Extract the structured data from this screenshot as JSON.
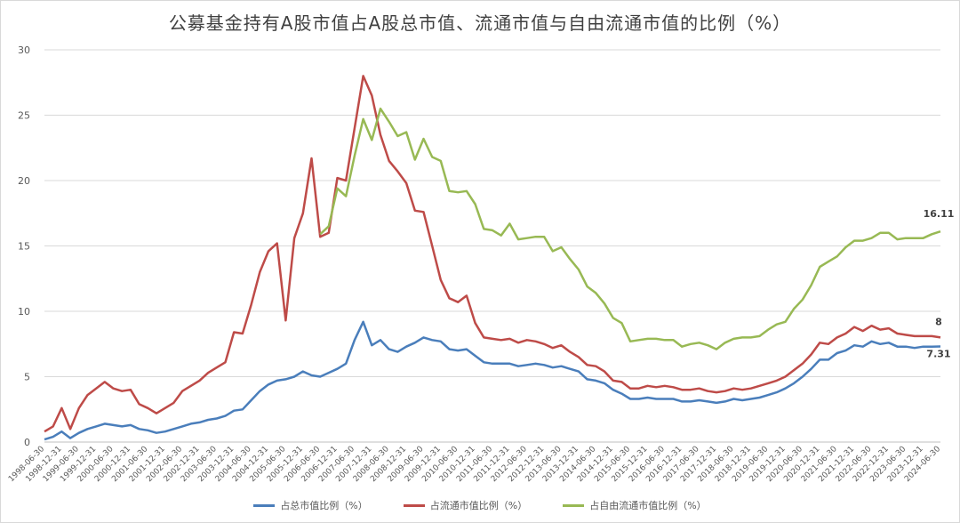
{
  "chart_data": {
    "type": "line",
    "title": "公募基金持有A股市值占A股总市值、流通市值与自由流通市值的比例（%）",
    "ylim": [
      0,
      30
    ],
    "yticks": [
      0,
      5,
      10,
      15,
      20,
      25,
      30
    ],
    "grid": true,
    "legend_position": "bottom",
    "x_tick_labels": [
      "1998-06-30",
      "1998-12-31",
      "1999-06-30",
      "1999-12-31",
      "2000-06-30",
      "2000-12-31",
      "2001-06-30",
      "2001-12-31",
      "2002-06-30",
      "2002-12-31",
      "2003-06-30",
      "2003-12-31",
      "2004-06-30",
      "2004-12-31",
      "2005-06-30",
      "2005-12-31",
      "2006-06-30",
      "2006-12-31",
      "2007-06-30",
      "2007-12-31",
      "2008-06-30",
      "2008-12-31",
      "2009-06-30",
      "2009-12-31",
      "2010-06-30",
      "2010-12-31",
      "2011-06-30",
      "2011-12-31",
      "2012-06-30",
      "2012-12-31",
      "2013-06-30",
      "2013-12-31",
      "2014-06-30",
      "2014-12-31",
      "2015-06-30",
      "2015-12-31",
      "2016-06-30",
      "2016-12-31",
      "2017-06-30",
      "2017-12-31",
      "2018-06-30",
      "2018-12-31",
      "2019-06-30",
      "2019-12-31",
      "2020-06-30",
      "2020-12-31",
      "2021-06-30",
      "2021-12-31",
      "2022-06-30",
      "2022-12-31",
      "2023-06-30",
      "2023-12-31",
      "2024-06-30"
    ],
    "quarters_per_tick": 2,
    "series": [
      {
        "name": "占总市值比例（%）",
        "color": "#4a7ebb",
        "values": [
          0.2,
          0.4,
          0.8,
          0.3,
          0.7,
          1.0,
          1.2,
          1.4,
          1.3,
          1.2,
          1.3,
          1.0,
          0.9,
          0.7,
          0.8,
          1.0,
          1.2,
          1.4,
          1.5,
          1.7,
          1.8,
          2.0,
          2.4,
          2.5,
          3.2,
          3.9,
          4.4,
          4.7,
          4.8,
          5.0,
          5.4,
          5.1,
          5.0,
          5.3,
          5.6,
          6.0,
          7.8,
          9.2,
          7.4,
          7.8,
          7.1,
          6.9,
          7.3,
          7.6,
          8.0,
          7.8,
          7.7,
          7.1,
          7.0,
          7.1,
          6.6,
          6.1,
          6.0,
          6.0,
          6.0,
          5.8,
          5.9,
          6.0,
          5.9,
          5.7,
          5.8,
          5.6,
          5.4,
          4.8,
          4.7,
          4.5,
          4.0,
          3.7,
          3.3,
          3.3,
          3.4,
          3.3,
          3.3,
          3.3,
          3.1,
          3.1,
          3.2,
          3.1,
          3.0,
          3.1,
          3.3,
          3.2,
          3.3,
          3.4,
          3.6,
          3.8,
          4.1,
          4.5,
          5.0,
          5.6,
          6.3,
          6.3,
          6.8,
          7.0,
          7.4,
          7.3,
          7.7,
          7.5,
          7.6,
          7.3,
          7.3,
          7.2,
          7.3,
          7.3,
          7.31
        ],
        "end_label": "7.31"
      },
      {
        "name": "占流通市值比例（%）",
        "color": "#be4b48",
        "values": [
          0.8,
          1.2,
          2.6,
          1.0,
          2.6,
          3.6,
          4.1,
          4.6,
          4.1,
          3.9,
          4.0,
          2.9,
          2.6,
          2.2,
          2.6,
          3.0,
          3.9,
          4.3,
          4.7,
          5.3,
          5.7,
          6.1,
          8.4,
          8.3,
          10.5,
          13.0,
          14.6,
          15.2,
          9.3,
          15.6,
          17.5,
          21.7,
          15.7,
          16.0,
          20.2,
          20.0,
          24.0,
          28.0,
          26.5,
          23.5,
          21.5,
          20.7,
          19.8,
          17.7,
          17.6,
          15.0,
          12.4,
          11.0,
          10.7,
          11.2,
          9.1,
          8.0,
          7.9,
          7.8,
          7.9,
          7.6,
          7.8,
          7.7,
          7.5,
          7.2,
          7.4,
          6.9,
          6.5,
          5.9,
          5.8,
          5.4,
          4.7,
          4.6,
          4.1,
          4.1,
          4.3,
          4.2,
          4.3,
          4.2,
          4.0,
          4.0,
          4.1,
          3.9,
          3.8,
          3.9,
          4.1,
          4.0,
          4.1,
          4.3,
          4.5,
          4.7,
          5.0,
          5.5,
          6.0,
          6.7,
          7.6,
          7.5,
          8.0,
          8.3,
          8.8,
          8.5,
          8.9,
          8.6,
          8.7,
          8.3,
          8.2,
          8.1,
          8.1,
          8.1,
          8.0
        ],
        "end_label": "8"
      },
      {
        "name": "占自由流通市值比例（%）",
        "color": "#98b954",
        "start_index": 32,
        "values": [
          15.9,
          16.5,
          19.4,
          18.8,
          21.9,
          24.7,
          23.1,
          25.5,
          24.5,
          23.4,
          23.7,
          21.6,
          23.2,
          21.8,
          21.5,
          19.2,
          19.1,
          19.2,
          18.2,
          16.3,
          16.2,
          15.8,
          16.7,
          15.5,
          15.6,
          15.7,
          15.7,
          14.6,
          14.9,
          14.0,
          13.2,
          11.9,
          11.4,
          10.6,
          9.5,
          9.1,
          7.7,
          7.8,
          7.9,
          7.9,
          7.8,
          7.8,
          7.3,
          7.5,
          7.6,
          7.4,
          7.1,
          7.6,
          7.9,
          8.0,
          8.0,
          8.1,
          8.6,
          9.0,
          9.2,
          10.2,
          10.9,
          12.0,
          13.4,
          13.8,
          14.2,
          14.9,
          15.4,
          15.4,
          15.6,
          16.0,
          16.0,
          15.5,
          15.6,
          15.6,
          15.6,
          15.9,
          16.11
        ],
        "end_label": "16.11"
      }
    ]
  }
}
